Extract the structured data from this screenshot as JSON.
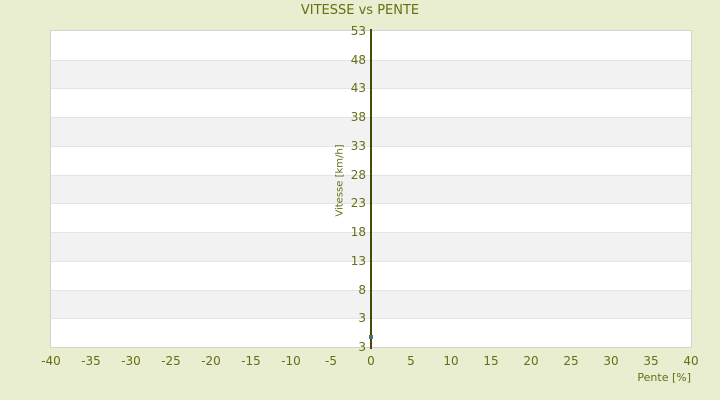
{
  "chart_data": {
    "type": "scatter",
    "title": "VITESSE vs PENTE",
    "xlabel": "Pente [%]",
    "ylabel": "Vitesse [km/h]",
    "xlim": [
      -40,
      40
    ],
    "ylim": [
      -2,
      53
    ],
    "xticks": [
      -40,
      -35,
      -30,
      -25,
      -20,
      -15,
      -10,
      -5,
      0,
      5,
      10,
      15,
      20,
      25,
      30,
      35,
      40
    ],
    "yticks": [
      53,
      48,
      43,
      38,
      33,
      28,
      23,
      18,
      13,
      8,
      3
    ],
    "y_axis_bottom_extra_label": "3",
    "grid": "horizontal-alternating-bands",
    "legend": "none",
    "axis_line_at_x": 0,
    "series": [
      {
        "name": "Vitesse",
        "style": "points",
        "color": "#4e707e",
        "points": [
          {
            "x": 0,
            "y": 0
          }
        ]
      }
    ],
    "colors": {
      "background": "#e9eed0",
      "band_light": "#ffffff",
      "band_dark": "#f2f2f2",
      "gridline": "#e4e4e4",
      "plot_border": "#d3d3d3",
      "text": "#686d16",
      "axis_line": "#454a07"
    }
  }
}
